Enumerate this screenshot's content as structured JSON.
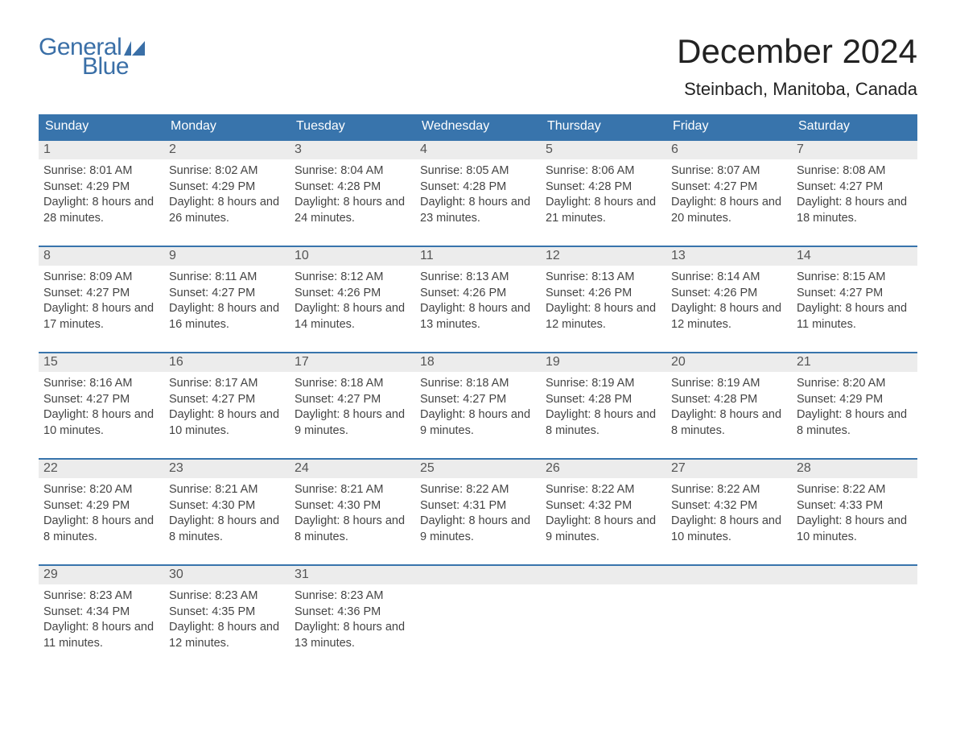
{
  "logo": {
    "word1": "General",
    "word2": "Blue",
    "brand_color": "#3a6fa7"
  },
  "title": "December 2024",
  "location": "Steinbach, Manitoba, Canada",
  "header_bg": "#3874ac",
  "daynum_bg": "#ececec",
  "weekdays": [
    "Sunday",
    "Monday",
    "Tuesday",
    "Wednesday",
    "Thursday",
    "Friday",
    "Saturday"
  ],
  "weeks": [
    [
      {
        "n": "1",
        "sr": "8:01 AM",
        "ss": "4:29 PM",
        "dl": "8 hours and 28 minutes."
      },
      {
        "n": "2",
        "sr": "8:02 AM",
        "ss": "4:29 PM",
        "dl": "8 hours and 26 minutes."
      },
      {
        "n": "3",
        "sr": "8:04 AM",
        "ss": "4:28 PM",
        "dl": "8 hours and 24 minutes."
      },
      {
        "n": "4",
        "sr": "8:05 AM",
        "ss": "4:28 PM",
        "dl": "8 hours and 23 minutes."
      },
      {
        "n": "5",
        "sr": "8:06 AM",
        "ss": "4:28 PM",
        "dl": "8 hours and 21 minutes."
      },
      {
        "n": "6",
        "sr": "8:07 AM",
        "ss": "4:27 PM",
        "dl": "8 hours and 20 minutes."
      },
      {
        "n": "7",
        "sr": "8:08 AM",
        "ss": "4:27 PM",
        "dl": "8 hours and 18 minutes."
      }
    ],
    [
      {
        "n": "8",
        "sr": "8:09 AM",
        "ss": "4:27 PM",
        "dl": "8 hours and 17 minutes."
      },
      {
        "n": "9",
        "sr": "8:11 AM",
        "ss": "4:27 PM",
        "dl": "8 hours and 16 minutes."
      },
      {
        "n": "10",
        "sr": "8:12 AM",
        "ss": "4:26 PM",
        "dl": "8 hours and 14 minutes."
      },
      {
        "n": "11",
        "sr": "8:13 AM",
        "ss": "4:26 PM",
        "dl": "8 hours and 13 minutes."
      },
      {
        "n": "12",
        "sr": "8:13 AM",
        "ss": "4:26 PM",
        "dl": "8 hours and 12 minutes."
      },
      {
        "n": "13",
        "sr": "8:14 AM",
        "ss": "4:26 PM",
        "dl": "8 hours and 12 minutes."
      },
      {
        "n": "14",
        "sr": "8:15 AM",
        "ss": "4:27 PM",
        "dl": "8 hours and 11 minutes."
      }
    ],
    [
      {
        "n": "15",
        "sr": "8:16 AM",
        "ss": "4:27 PM",
        "dl": "8 hours and 10 minutes."
      },
      {
        "n": "16",
        "sr": "8:17 AM",
        "ss": "4:27 PM",
        "dl": "8 hours and 10 minutes."
      },
      {
        "n": "17",
        "sr": "8:18 AM",
        "ss": "4:27 PM",
        "dl": "8 hours and 9 minutes."
      },
      {
        "n": "18",
        "sr": "8:18 AM",
        "ss": "4:27 PM",
        "dl": "8 hours and 9 minutes."
      },
      {
        "n": "19",
        "sr": "8:19 AM",
        "ss": "4:28 PM",
        "dl": "8 hours and 8 minutes."
      },
      {
        "n": "20",
        "sr": "8:19 AM",
        "ss": "4:28 PM",
        "dl": "8 hours and 8 minutes."
      },
      {
        "n": "21",
        "sr": "8:20 AM",
        "ss": "4:29 PM",
        "dl": "8 hours and 8 minutes."
      }
    ],
    [
      {
        "n": "22",
        "sr": "8:20 AM",
        "ss": "4:29 PM",
        "dl": "8 hours and 8 minutes."
      },
      {
        "n": "23",
        "sr": "8:21 AM",
        "ss": "4:30 PM",
        "dl": "8 hours and 8 minutes."
      },
      {
        "n": "24",
        "sr": "8:21 AM",
        "ss": "4:30 PM",
        "dl": "8 hours and 8 minutes."
      },
      {
        "n": "25",
        "sr": "8:22 AM",
        "ss": "4:31 PM",
        "dl": "8 hours and 9 minutes."
      },
      {
        "n": "26",
        "sr": "8:22 AM",
        "ss": "4:32 PM",
        "dl": "8 hours and 9 minutes."
      },
      {
        "n": "27",
        "sr": "8:22 AM",
        "ss": "4:32 PM",
        "dl": "8 hours and 10 minutes."
      },
      {
        "n": "28",
        "sr": "8:22 AM",
        "ss": "4:33 PM",
        "dl": "8 hours and 10 minutes."
      }
    ],
    [
      {
        "n": "29",
        "sr": "8:23 AM",
        "ss": "4:34 PM",
        "dl": "8 hours and 11 minutes."
      },
      {
        "n": "30",
        "sr": "8:23 AM",
        "ss": "4:35 PM",
        "dl": "8 hours and 12 minutes."
      },
      {
        "n": "31",
        "sr": "8:23 AM",
        "ss": "4:36 PM",
        "dl": "8 hours and 13 minutes."
      },
      null,
      null,
      null,
      null
    ]
  ],
  "labels": {
    "sunrise": "Sunrise: ",
    "sunset": "Sunset: ",
    "daylight": "Daylight: "
  }
}
